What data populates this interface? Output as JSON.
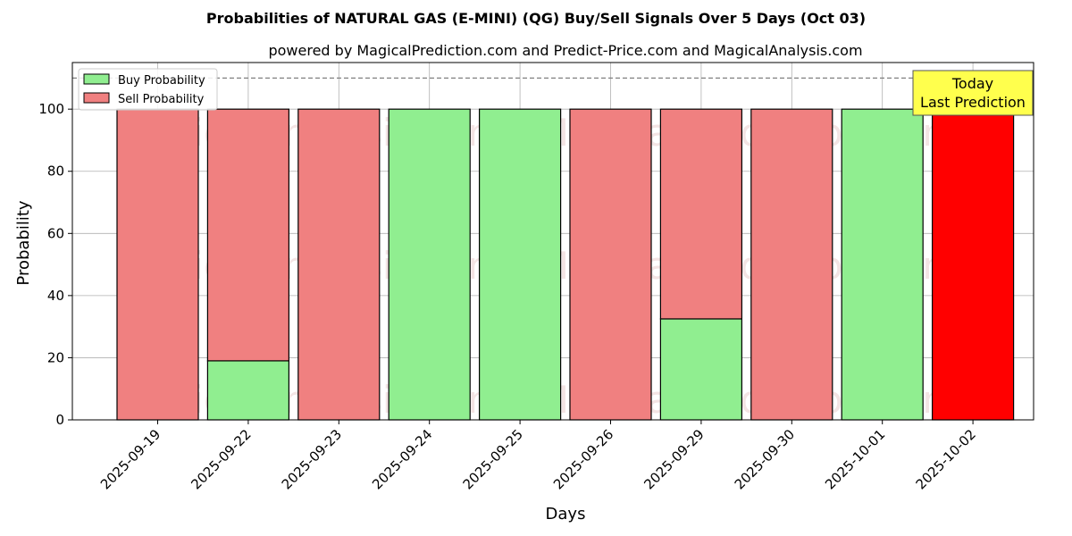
{
  "chart_data": {
    "type": "bar",
    "title": "Probabilities of NATURAL GAS (E-MINI) (QG) Buy/Sell Signals Over 5 Days (Oct 03)",
    "subtitle": "powered by MagicalPrediction.com and Predict-Price.com and MagicalAnalysis.com",
    "xlabel": "Days",
    "ylabel": "Probability",
    "ylim": [
      0,
      115
    ],
    "yticks": [
      0,
      20,
      40,
      60,
      80,
      100
    ],
    "threshold": 110,
    "grid": true,
    "stacked": true,
    "legend_position": "top-left",
    "categories": [
      "2025-09-19",
      "2025-09-22",
      "2025-09-23",
      "2025-09-24",
      "2025-09-25",
      "2025-09-26",
      "2025-09-29",
      "2025-09-30",
      "2025-10-01",
      "2025-10-02"
    ],
    "series": [
      {
        "name": "Buy Probability",
        "color": "#90ee90",
        "values": [
          0,
          19,
          0,
          100,
          100,
          0,
          32.5,
          0,
          100,
          0
        ]
      },
      {
        "name": "Sell Probability",
        "color": "#f08080",
        "values": [
          100,
          81,
          100,
          0,
          0,
          100,
          67.5,
          100,
          0,
          100
        ]
      }
    ],
    "highlight": {
      "index": 9,
      "color": "#ff0000"
    },
    "annotation": {
      "lines": [
        "Today",
        "Last Prediction"
      ],
      "background": "#ffff4d"
    },
    "watermarks": [
      "MagicalAnalysis.com",
      "MagicalPrediction.com"
    ]
  }
}
